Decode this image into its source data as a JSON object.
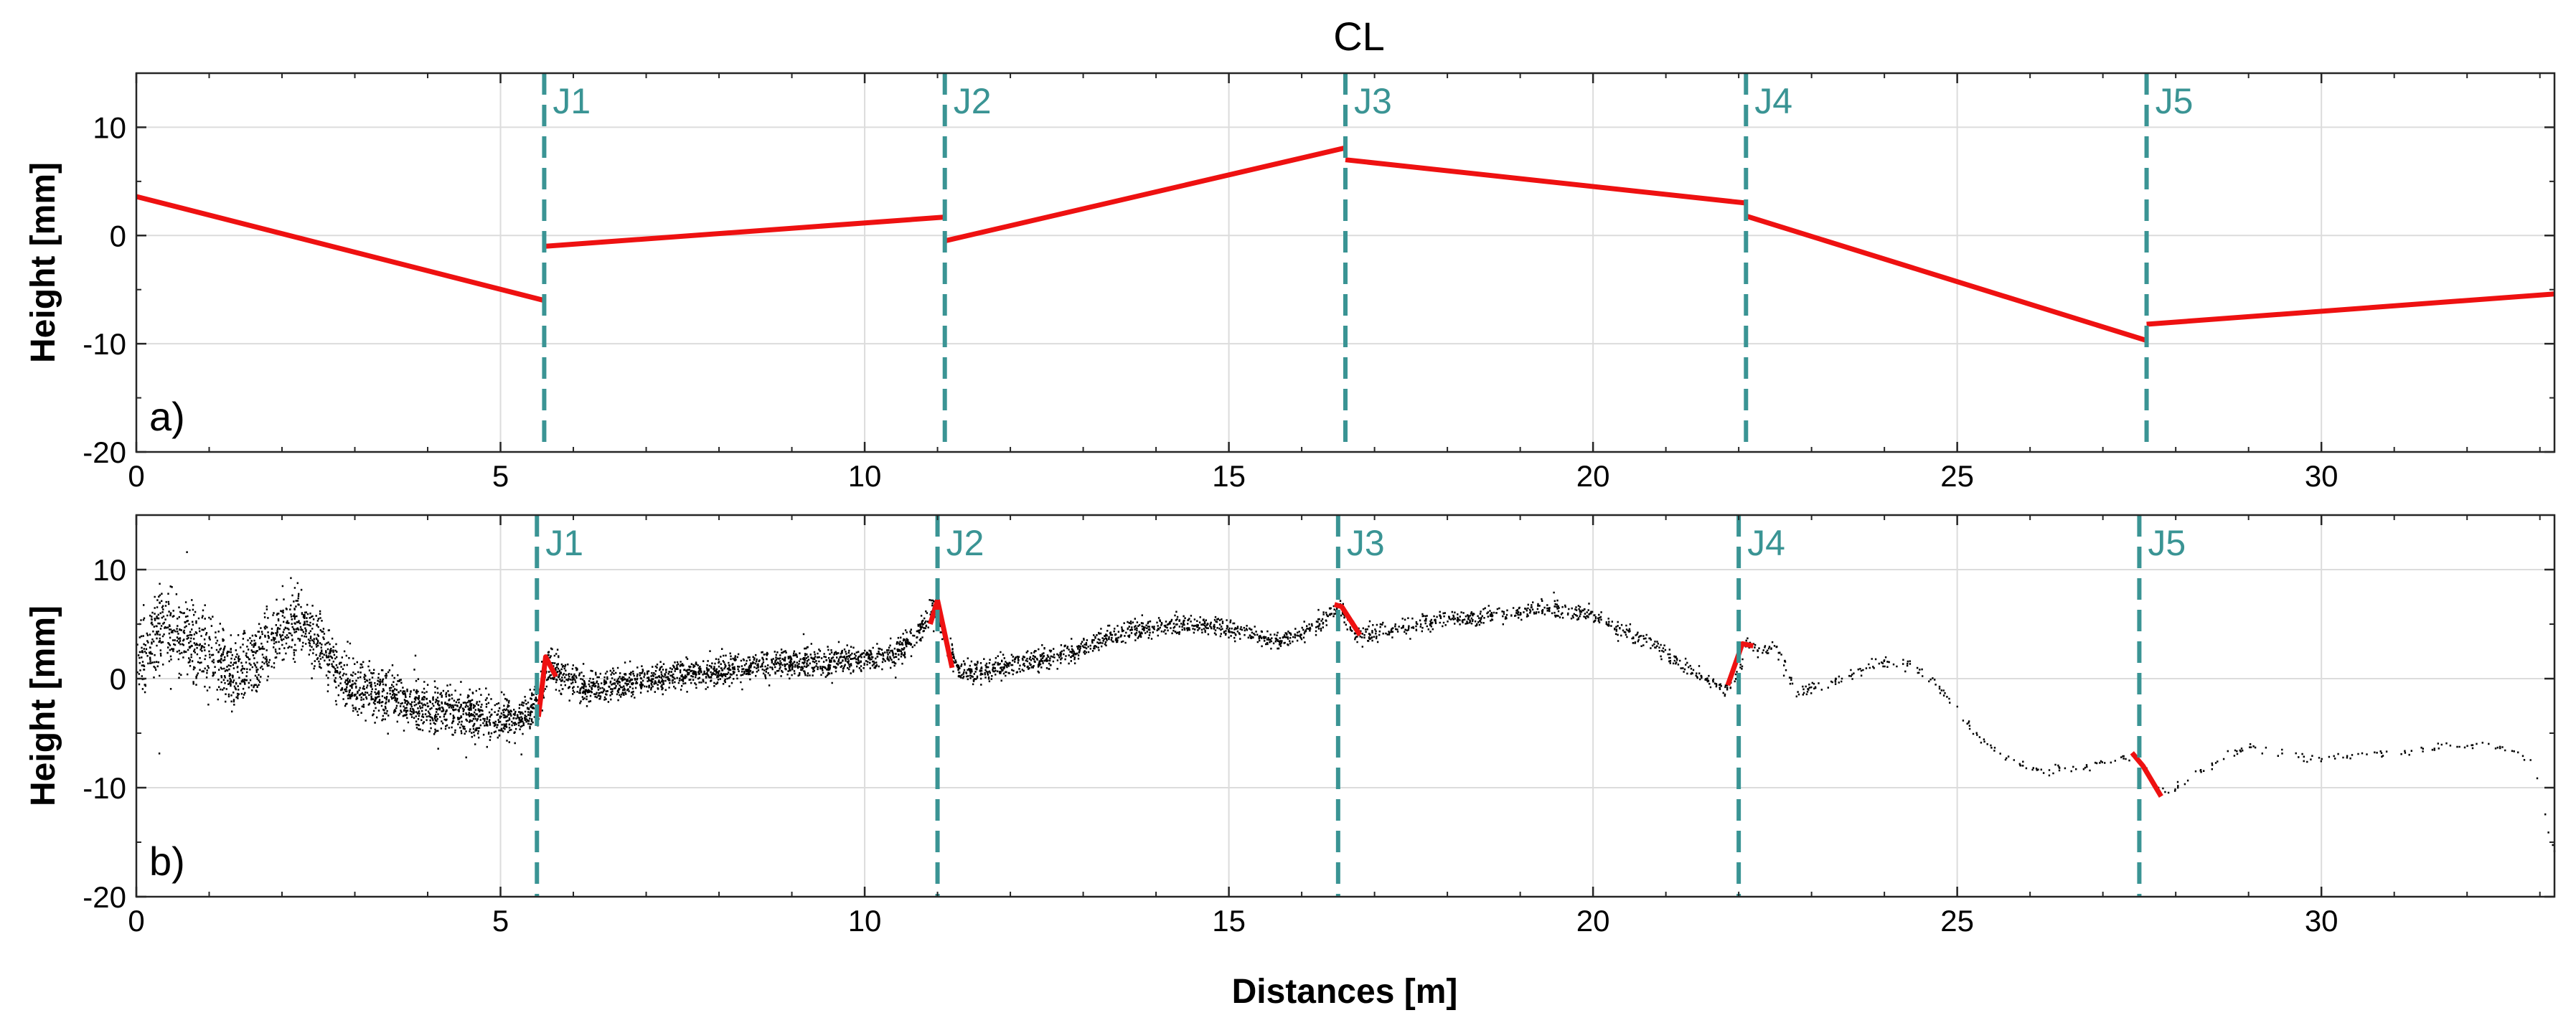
{
  "chart_data": [
    {
      "type": "line",
      "title": "CL",
      "panel_label": "a)",
      "xlabel": "",
      "ylabel": "Height [mm]",
      "xlim": [
        0,
        33.2
      ],
      "ylim": [
        -20,
        15
      ],
      "xticks": [
        0,
        5,
        10,
        15,
        20,
        25,
        30
      ],
      "yticks": [
        -20,
        -10,
        0,
        10
      ],
      "grid": true,
      "line_color": "#ee1111",
      "segments": [
        {
          "x": [
            0,
            5.6
          ],
          "y": [
            3.6,
            -6.0
          ]
        },
        {
          "x": [
            5.6,
            11.1
          ],
          "y": [
            -1.0,
            1.7
          ]
        },
        {
          "x": [
            11.1,
            16.6
          ],
          "y": [
            -0.5,
            8.1
          ]
        },
        {
          "x": [
            16.6,
            22.1
          ],
          "y": [
            7.0,
            3.0
          ]
        },
        {
          "x": [
            22.1,
            27.6
          ],
          "y": [
            1.8,
            -9.7
          ]
        },
        {
          "x": [
            27.6,
            33.2
          ],
          "y": [
            -8.2,
            -5.4
          ]
        }
      ],
      "joints": [
        {
          "label": "J1",
          "x": 5.6
        },
        {
          "label": "J2",
          "x": 11.1
        },
        {
          "label": "J3",
          "x": 16.6
        },
        {
          "label": "J4",
          "x": 22.1
        },
        {
          "label": "J5",
          "x": 27.6
        }
      ],
      "joint_color": "#3a9494"
    },
    {
      "type": "scatter",
      "title": "",
      "panel_label": "b)",
      "xlabel": "Distances [m]",
      "ylabel": "Height [mm]",
      "xlim": [
        0,
        33.2
      ],
      "ylim": [
        -20,
        15
      ],
      "xticks": [
        0,
        5,
        10,
        15,
        20,
        25,
        30
      ],
      "yticks": [
        -20,
        -10,
        0,
        10
      ],
      "grid": true,
      "point_color": "#000000",
      "profile": {
        "x": [
          0,
          0.3,
          0.6,
          1.0,
          1.3,
          1.6,
          1.9,
          2.2,
          2.5,
          2.9,
          3.3,
          3.7,
          4.1,
          4.5,
          4.9,
          5.3,
          5.5,
          5.65,
          5.8,
          6.2,
          6.6,
          7.0,
          7.5,
          8.0,
          8.5,
          9.0,
          9.5,
          10.0,
          10.4,
          10.7,
          10.95,
          11.1,
          11.3,
          11.7,
          12.1,
          12.5,
          12.9,
          13.3,
          13.7,
          14.1,
          14.5,
          14.9,
          15.3,
          15.7,
          16.0,
          16.3,
          16.5,
          16.7,
          16.9,
          17.3,
          17.8,
          18.3,
          18.8,
          19.3,
          19.8,
          20.3,
          20.7,
          21.1,
          21.5,
          21.8,
          22.0,
          22.1,
          22.3,
          22.5,
          22.6,
          22.8,
          23.2,
          23.6,
          23.9,
          24.3,
          24.7,
          25.0,
          25.3,
          25.6,
          25.9,
          26.2,
          26.6,
          27.0,
          27.3,
          27.5,
          27.7,
          27.9,
          28.2,
          28.6,
          29.0,
          29.4,
          29.8,
          30.2,
          30.6,
          31.0,
          31.4,
          31.8,
          32.2,
          32.6,
          32.9,
          33.2
        ],
        "y": [
          1.0,
          4.8,
          4.3,
          2.0,
          0.3,
          1.5,
          4.0,
          5.4,
          3.4,
          -0.5,
          -1.4,
          -2.2,
          -2.7,
          -3.2,
          -3.6,
          -3.6,
          -2.4,
          1.5,
          0.2,
          -0.9,
          -0.5,
          0.0,
          0.4,
          0.8,
          1.1,
          1.5,
          1.6,
          1.8,
          2.2,
          4.0,
          6.5,
          3.5,
          0.5,
          0.8,
          1.4,
          1.8,
          2.5,
          3.8,
          4.5,
          4.8,
          5.0,
          4.8,
          4.0,
          3.5,
          4.2,
          5.5,
          6.5,
          4.5,
          4.0,
          4.6,
          5.3,
          5.5,
          5.9,
          6.5,
          6.2,
          4.8,
          3.5,
          1.8,
          0.0,
          -1.0,
          0.5,
          3.5,
          2.5,
          3.0,
          1.5,
          -1.5,
          -0.5,
          0.5,
          1.5,
          1.5,
          -0.5,
          -3.0,
          -5.5,
          -7.0,
          -8.0,
          -8.5,
          -8.2,
          -7.6,
          -7.2,
          -7.5,
          -10.0,
          -10.4,
          -9.0,
          -7.4,
          -6.2,
          -6.8,
          -7.4,
          -7.2,
          -6.8,
          -7.0,
          -6.5,
          -6.2,
          -6.1,
          -6.5,
          -7.8,
          -16.5
        ],
        "spread": [
          4.0,
          4.0,
          4.0,
          3.8,
          3.6,
          3.6,
          3.4,
          3.2,
          3.0,
          2.8,
          2.6,
          2.4,
          2.4,
          2.2,
          2.2,
          2.0,
          2.0,
          1.8,
          1.8,
          1.6,
          1.5,
          1.5,
          1.5,
          1.4,
          1.4,
          1.4,
          1.3,
          1.3,
          1.2,
          1.2,
          1.2,
          1.2,
          1.2,
          1.1,
          1.1,
          1.1,
          1.0,
          1.0,
          1.0,
          1.0,
          1.0,
          1.0,
          0.9,
          0.9,
          0.9,
          0.9,
          0.9,
          0.9,
          0.9,
          0.9,
          0.9,
          0.8,
          0.8,
          0.8,
          0.8,
          0.8,
          0.8,
          0.8,
          0.7,
          0.7,
          0.7,
          0.7,
          0.6,
          0.6,
          0.6,
          0.6,
          0.5,
          0.5,
          0.5,
          0.5,
          0.5,
          0.5,
          0.5,
          0.5,
          0.5,
          0.5,
          0.5,
          0.5,
          0.5,
          0.5,
          0.5,
          0.5,
          0.4,
          0.4,
          0.4,
          0.4,
          0.4,
          0.4,
          0.4,
          0.4,
          0.4,
          0.4,
          0.4,
          0.4,
          0.4,
          0.6
        ],
        "density": [
          120,
          120,
          120,
          120,
          120,
          120,
          120,
          120,
          120,
          120,
          120,
          120,
          120,
          120,
          120,
          120,
          120,
          120,
          100,
          100,
          100,
          100,
          100,
          90,
          90,
          90,
          90,
          80,
          80,
          80,
          80,
          80,
          70,
          70,
          70,
          60,
          60,
          60,
          60,
          55,
          55,
          50,
          50,
          50,
          45,
          45,
          45,
          45,
          40,
          40,
          40,
          40,
          35,
          35,
          35,
          35,
          30,
          30,
          28,
          28,
          26,
          26,
          24,
          22,
          20,
          18,
          16,
          15,
          14,
          13,
          12,
          11,
          10,
          10,
          9,
          9,
          9,
          8,
          8,
          8,
          8,
          8,
          8,
          8,
          7,
          7,
          7,
          7,
          7,
          7,
          7,
          7,
          7,
          7,
          6,
          6
        ]
      },
      "fit_segments": [
        {
          "x": [
            5.52,
            5.62,
            5.76
          ],
          "y": [
            -3.5,
            2.0,
            0.2
          ]
        },
        {
          "x": [
            10.9,
            11.0,
            11.2
          ],
          "y": [
            5.0,
            7.2,
            1.0
          ]
        },
        {
          "x": [
            16.45,
            16.55,
            16.8
          ],
          "y": [
            6.8,
            6.6,
            4.0
          ]
        },
        {
          "x": [
            21.85,
            22.05,
            22.2
          ],
          "y": [
            -0.6,
            3.2,
            3.0
          ]
        },
        {
          "x": [
            27.4,
            27.55,
            27.8
          ],
          "y": [
            -6.8,
            -8.0,
            -10.8
          ]
        }
      ],
      "fit_color": "#ee1111",
      "joints": [
        {
          "label": "J1",
          "x": 5.5
        },
        {
          "label": "J2",
          "x": 11.0
        },
        {
          "label": "J3",
          "x": 16.5
        },
        {
          "label": "J4",
          "x": 22.0
        },
        {
          "label": "J5",
          "x": 27.5
        }
      ],
      "joint_color": "#3a9494"
    }
  ]
}
